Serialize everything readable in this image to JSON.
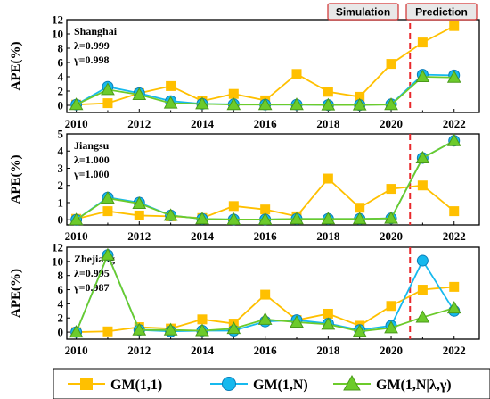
{
  "colors": {
    "gm11": "#FFC000",
    "gmn": "#16B9EE",
    "gmnlg": "#6CCB2B",
    "divider": "#E8282B",
    "phaseBox": "#E8E8E8",
    "phaseBorder": "#D03030"
  },
  "phases": {
    "simulation": "Simulation",
    "prediction": "Prediction"
  },
  "legend": [
    {
      "key": "gm11",
      "label": "GM(1,1)",
      "marker": "square"
    },
    {
      "key": "gmn",
      "label": "GM(1,N)",
      "marker": "circle"
    },
    {
      "key": "gmnlg",
      "label": "GM(1,N|λ,γ)",
      "marker": "triangle"
    }
  ],
  "chart_data": [
    {
      "type": "line",
      "region": "Shanghai",
      "lambda_text": "λ=0.999",
      "gamma_text": "γ=0.998",
      "ylabel": "APE(%)",
      "x": [
        2010,
        2011,
        2012,
        2013,
        2014,
        2015,
        2016,
        2017,
        2018,
        2019,
        2020,
        2021,
        2022
      ],
      "xticks": [
        "2010",
        "2012",
        "2014",
        "2016",
        "2018",
        "2020",
        "2022"
      ],
      "yticks": [
        "0",
        "2",
        "4",
        "6",
        "8",
        "10",
        "12"
      ],
      "ylim": [
        -1,
        12
      ],
      "series": [
        {
          "name": "GM(1,1)",
          "values": [
            0.1,
            0.3,
            1.7,
            2.7,
            0.6,
            1.6,
            0.7,
            4.4,
            1.9,
            1.2,
            5.8,
            8.8,
            11.1
          ]
        },
        {
          "name": "GM(1,N)",
          "values": [
            0.1,
            2.6,
            1.7,
            0.6,
            0.2,
            0.15,
            0.1,
            0.1,
            0.05,
            0.05,
            0.15,
            4.3,
            4.2
          ]
        },
        {
          "name": "GM(1,N|λ,γ)",
          "values": [
            0.1,
            2.2,
            1.5,
            0.3,
            0.2,
            0.1,
            0.1,
            0.1,
            0.05,
            0.05,
            0.1,
            4.0,
            3.9
          ]
        }
      ]
    },
    {
      "type": "line",
      "region": "Jiangsu",
      "lambda_text": "λ=1.000",
      "gamma_text": "γ=1.000",
      "ylabel": "APE(%)",
      "x": [
        2010,
        2011,
        2012,
        2013,
        2014,
        2015,
        2016,
        2017,
        2018,
        2019,
        2020,
        2021,
        2022
      ],
      "xticks": [
        "2010",
        "2012",
        "2014",
        "2016",
        "2018",
        "2020",
        "2022"
      ],
      "yticks": [
        "0",
        "1",
        "2",
        "3",
        "4",
        "5"
      ],
      "ylim": [
        -0.3,
        5
      ],
      "series": [
        {
          "name": "GM(1,1)",
          "values": [
            0.05,
            0.5,
            0.25,
            0.2,
            0.1,
            0.8,
            0.6,
            0.2,
            2.4,
            0.7,
            1.8,
            2.0,
            0.5
          ]
        },
        {
          "name": "GM(1,N)",
          "values": [
            0.0,
            1.3,
            1.0,
            0.25,
            0.05,
            0.02,
            0.02,
            0.05,
            0.05,
            0.05,
            0.08,
            3.6,
            4.6
          ]
        },
        {
          "name": "GM(1,N|λ,γ)",
          "values": [
            0.0,
            1.25,
            0.95,
            0.25,
            0.05,
            0.02,
            0.02,
            0.05,
            0.05,
            0.05,
            0.08,
            3.6,
            4.6
          ]
        }
      ]
    },
    {
      "type": "line",
      "region": "Zhejiang",
      "lambda_text": "λ=0.995",
      "gamma_text": "γ=0.987",
      "ylabel": "APE(%)",
      "x": [
        2010,
        2011,
        2012,
        2013,
        2014,
        2015,
        2016,
        2017,
        2018,
        2019,
        2020,
        2021,
        2022
      ],
      "xticks": [
        "2010",
        "2012",
        "2014",
        "2016",
        "2018",
        "2020",
        "2022"
      ],
      "yticks": [
        "0",
        "2",
        "4",
        "6",
        "8",
        "10",
        "12"
      ],
      "ylim": [
        -1,
        12
      ],
      "series": [
        {
          "name": "GM(1,1)",
          "values": [
            0.0,
            0.1,
            0.7,
            0.5,
            1.8,
            1.2,
            5.3,
            1.7,
            2.6,
            0.9,
            3.7,
            6.0,
            6.4
          ]
        },
        {
          "name": "GM(1,N)",
          "values": [
            0.0,
            10.9,
            0.3,
            0.1,
            0.2,
            0.2,
            1.5,
            1.7,
            1.2,
            0.3,
            0.9,
            10.1,
            3.0
          ]
        },
        {
          "name": "GM(1,N|λ,γ)",
          "values": [
            0.0,
            10.9,
            0.3,
            0.3,
            0.2,
            0.5,
            1.8,
            1.4,
            1.1,
            0.1,
            0.6,
            2.1,
            3.4
          ]
        }
      ]
    }
  ]
}
